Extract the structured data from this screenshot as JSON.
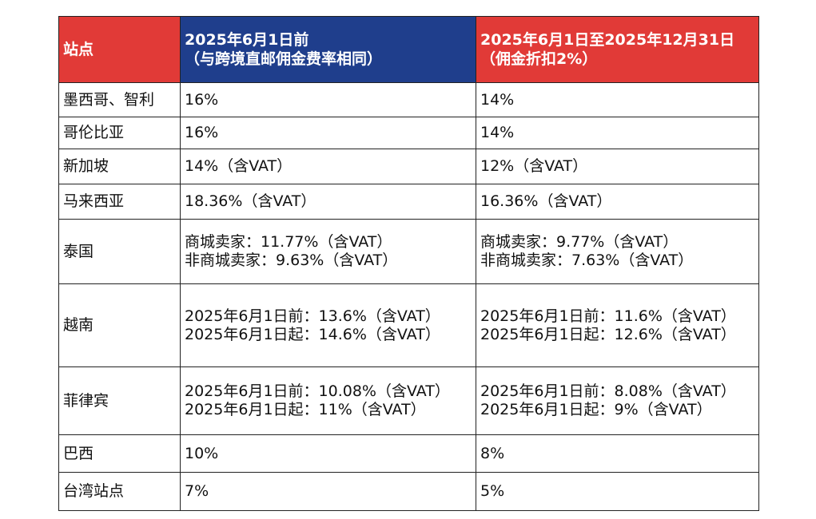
{
  "header": {
    "site": "站点",
    "before_line1": "2025年6月1日前",
    "before_line2": "（与跨境直邮佣金费率相同）",
    "after_line1": "2025年6月1日至2025年12月31日",
    "after_line2": "（佣金折扣2%）"
  },
  "rows": [
    {
      "site": "墨西哥、智利",
      "before": "16%",
      "after": "14%"
    },
    {
      "site": "哥伦比亚",
      "before": "16%",
      "after": "14%"
    },
    {
      "site": "新加坡",
      "before": "14%（含VAT）",
      "after": "12%（含VAT）"
    },
    {
      "site": "马来西亚",
      "before": "18.36%（含VAT）",
      "after": "16.36%（含VAT）"
    },
    {
      "site": "泰国",
      "before_1": "商城卖家：11.77%（含VAT）",
      "before_2": "非商城卖家：9.63%（含VAT）",
      "after_1": "商城卖家：9.77%（含VAT）",
      "after_2": "非商城卖家：7.63%（含VAT）"
    },
    {
      "site": "越南",
      "before_1": "2025年6月1日前：13.6%（含VAT）",
      "before_2": "2025年6月1日起：14.6%（含VAT）",
      "after_1": "2025年6月1日前：11.6%（含VAT）",
      "after_2": "2025年6月1日起：12.6%（含VAT）"
    },
    {
      "site": "菲律宾",
      "before_1": "2025年6月1日前：10.08%（含VAT）",
      "before_2": "2025年6月1日起：11%（含VAT）",
      "after_1": "2025年6月1日前：8.08%（含VAT）",
      "after_2": "2025年6月1日起：9%（含VAT）"
    },
    {
      "site": "巴西",
      "before": "10%",
      "after": "8%"
    },
    {
      "site": "台湾站点",
      "before": "7%",
      "after": "5%"
    }
  ],
  "colors": {
    "header_red": "#e13a37",
    "header_blue": "#1f3e8c",
    "border": "#222222"
  }
}
